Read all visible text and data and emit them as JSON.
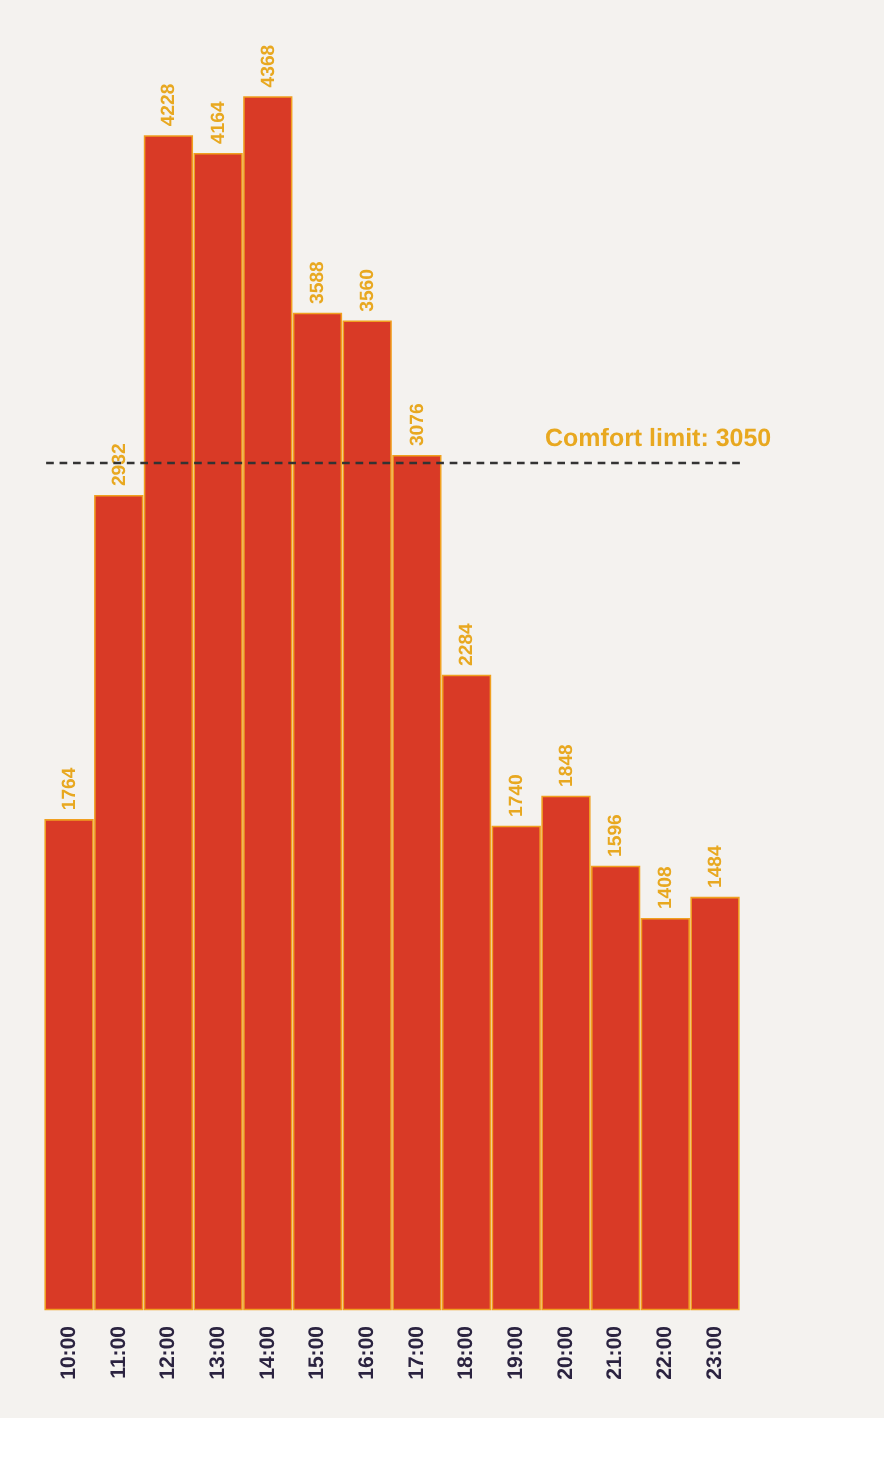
{
  "chart_data": {
    "type": "bar",
    "categories": [
      "10:00",
      "11:00",
      "12:00",
      "13:00",
      "14:00",
      "15:00",
      "16:00",
      "17:00",
      "18:00",
      "19:00",
      "20:00",
      "21:00",
      "22:00",
      "23:00"
    ],
    "values": [
      1764,
      2932,
      4228,
      4164,
      4368,
      3588,
      3560,
      3076,
      2284,
      1740,
      1848,
      1596,
      1408,
      1484
    ],
    "color": "#d93a26",
    "data_labels": true,
    "grid": false,
    "tick_labels": "x",
    "ref_lines": [
      {
        "axis": "y",
        "value": 3050,
        "label": "Comfort limit: 3050",
        "color": "#333333",
        "line_style": "dashed"
      }
    ]
  }
}
